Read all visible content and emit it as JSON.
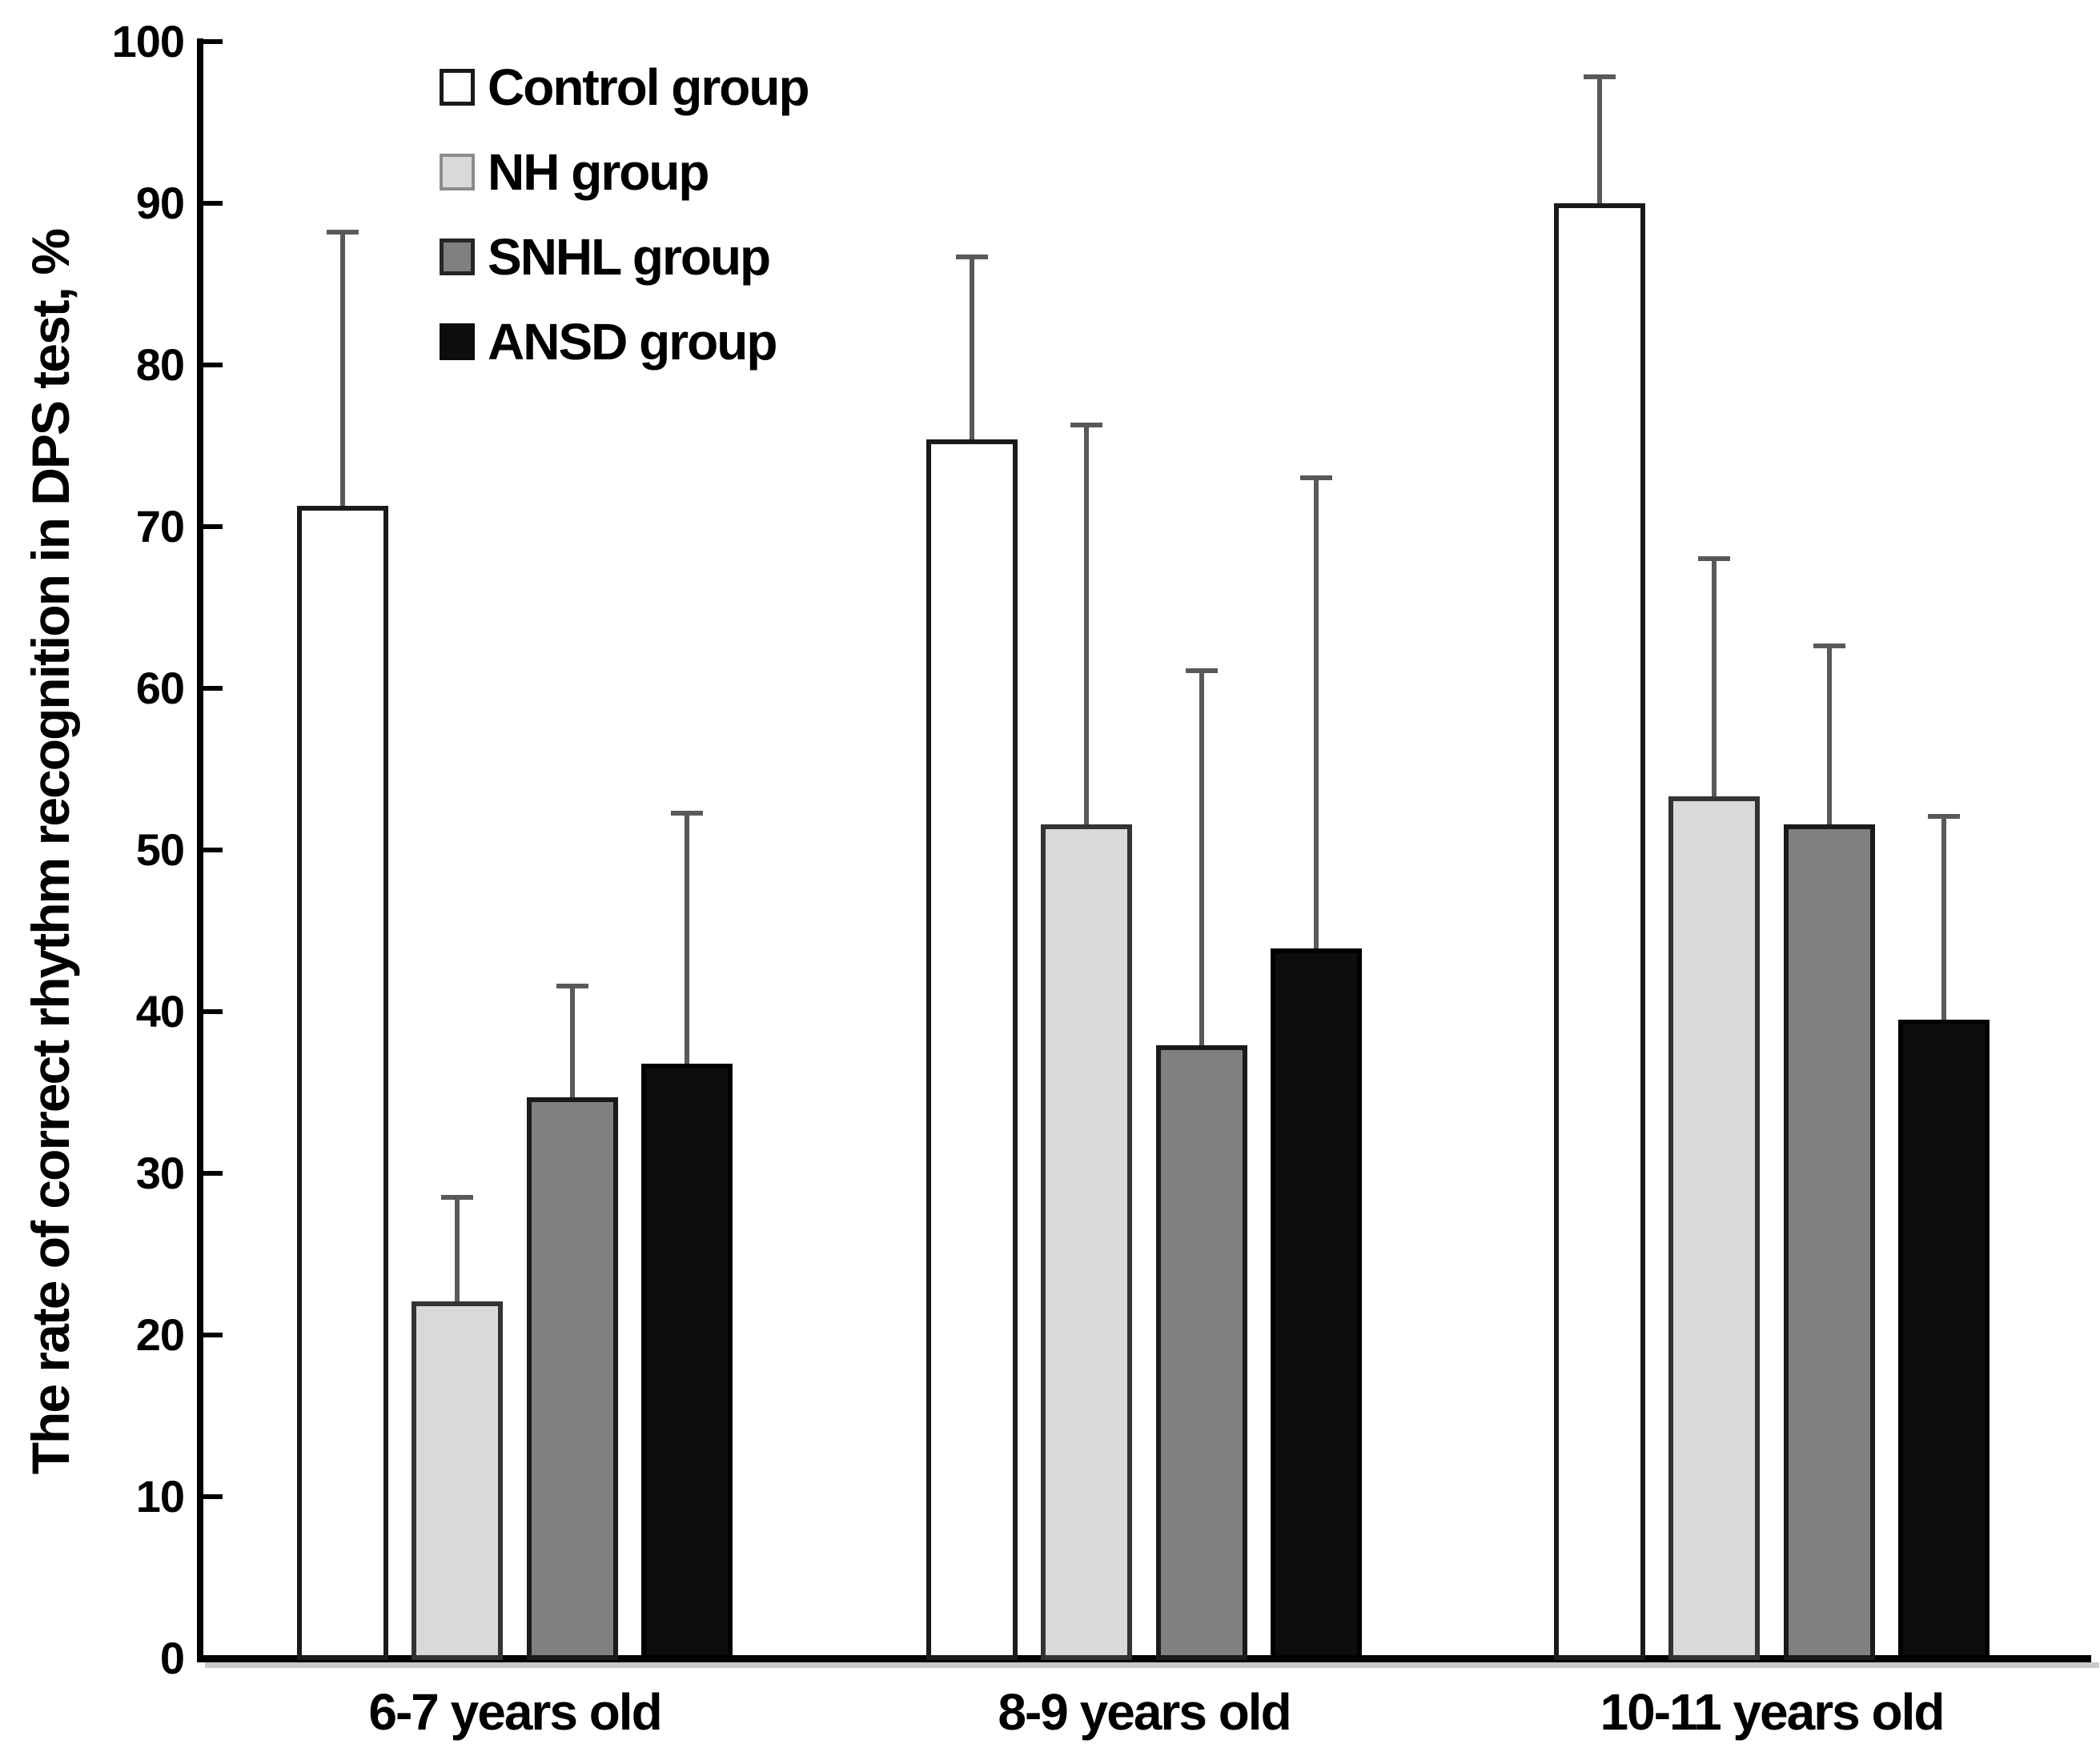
{
  "chart_data": {
    "type": "bar",
    "title": "",
    "ylabel": "The rate of correct rhythm recognition in DPS test, %",
    "xlabel": "",
    "categories": [
      "6-7 years old",
      "8-9 years old",
      "10-11 years old"
    ],
    "series": [
      {
        "name": "Control group",
        "fill": "#ffffff",
        "border": "#1a1a1a",
        "values": [
          71.3,
          75.4,
          90.0
        ],
        "errors_up": [
          16.9,
          11.3,
          7.8
        ]
      },
      {
        "name": "NH group",
        "fill": "#d9d9d9",
        "border": "#333333",
        "values": [
          22.1,
          51.6,
          53.3
        ],
        "errors_up": [
          6.4,
          24.7,
          14.7
        ]
      },
      {
        "name": "SNHL group",
        "fill": "#808080",
        "border": "#1a1a1a",
        "values": [
          34.7,
          37.9,
          51.6
        ],
        "errors_up": [
          6.9,
          23.2,
          11.0
        ]
      },
      {
        "name": "ANSD group",
        "fill": "#0d0d0d",
        "border": "#000000",
        "values": [
          36.8,
          43.9,
          39.5
        ],
        "errors_up": [
          15.5,
          29.1,
          12.6
        ]
      }
    ],
    "y_ticks": [
      0,
      10,
      20,
      30,
      40,
      50,
      60,
      70,
      80,
      90,
      100
    ],
    "ylim": [
      0,
      100
    ],
    "error_bar_color": "#595959",
    "axis_color": "#000000",
    "grid": false,
    "legend_position": "top-left-inside"
  }
}
